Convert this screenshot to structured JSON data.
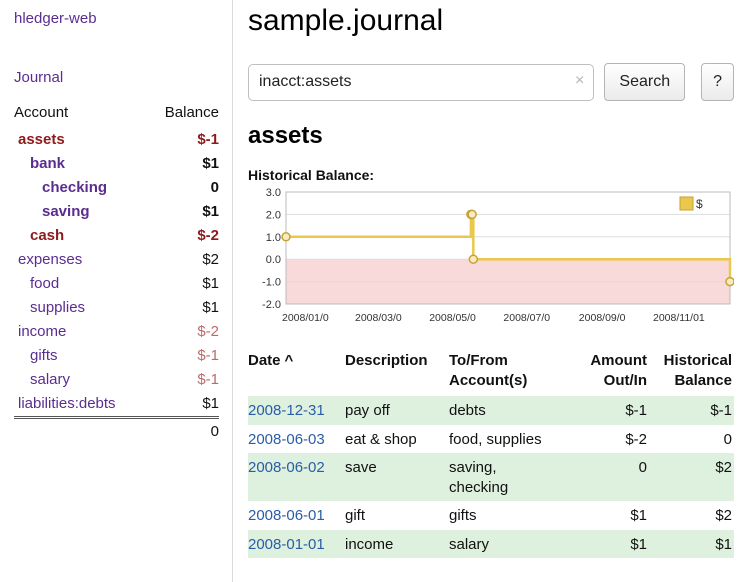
{
  "colors": {
    "link_purple": "#5b2d90",
    "negative_dark": "#8f1a1a",
    "negative_soft": "#bb6a6a",
    "amount_red": "#a32424",
    "date_link_blue": "#2a5da8",
    "row_shade_green": "#def0de",
    "chart_line_gold": "#e9c84b",
    "chart_negative_region": "#f9dada"
  },
  "sidebar": {
    "brand": "hledger-web",
    "journal_link": "Journal",
    "header": {
      "account": "Account",
      "balance": "Balance"
    },
    "accounts": [
      {
        "name": "assets",
        "balance": "$-1"
      },
      {
        "name": "bank",
        "balance": "$1"
      },
      {
        "name": "checking",
        "balance": "0"
      },
      {
        "name": "saving",
        "balance": "$1"
      },
      {
        "name": "cash",
        "balance": "$-2"
      },
      {
        "name": "expenses",
        "balance": "$2"
      },
      {
        "name": "food",
        "balance": "$1"
      },
      {
        "name": "supplies",
        "balance": "$1"
      },
      {
        "name": "income",
        "balance": "$-2"
      },
      {
        "name": "gifts",
        "balance": "$-1"
      },
      {
        "name": "salary",
        "balance": "$-1"
      },
      {
        "name": "liabilities:debts",
        "balance": "$1"
      }
    ],
    "total": "0"
  },
  "header": {
    "title": "sample.journal"
  },
  "search": {
    "value": "inacct:assets",
    "clear_icon": "×",
    "button": "Search",
    "help_button": "?"
  },
  "account_page": {
    "title": "assets",
    "chart_label": "Historical Balance:"
  },
  "chart_data": {
    "type": "line",
    "step": true,
    "title": "Historical Balance:",
    "legend": "$",
    "ylim": [
      -2,
      3
    ],
    "yticks": [
      3,
      2,
      1,
      0,
      -1,
      -2
    ],
    "x_range": [
      "2008-01-01",
      "2008-12-31"
    ],
    "xticks": [
      "2008-01-01",
      "2008-03-01",
      "2008-05-01",
      "2008-07-01",
      "2008-09-01",
      "2008-11-01"
    ],
    "xticklabels": [
      "2008/01/0",
      "2008/03/0",
      "2008/05/0",
      "2008/07/0",
      "2008/09/0",
      "2008/11/01"
    ],
    "grid": true,
    "legend_position": "top-right",
    "negative_region_color": "#f9dada",
    "series": [
      {
        "name": "$",
        "color": "#e9c84b",
        "marker_stroke": "#c7a233",
        "points": [
          {
            "date": "2008-01-01",
            "value": 1
          },
          {
            "date": "2008-06-01",
            "value": 2
          },
          {
            "date": "2008-06-02",
            "value": 2
          },
          {
            "date": "2008-06-03",
            "value": 0
          },
          {
            "date": "2008-12-31",
            "value": -1
          }
        ]
      }
    ]
  },
  "register": {
    "columns": [
      {
        "line1": "Date",
        "line2": "",
        "sort": "^"
      },
      {
        "line1": "Description",
        "line2": ""
      },
      {
        "line1": "To/From",
        "line2": "Account(s)"
      },
      {
        "line1": "Amount",
        "line2": "Out/In"
      },
      {
        "line1": "Historical",
        "line2": "Balance"
      }
    ],
    "rows": [
      {
        "date": "2008-12-31",
        "description": "pay off",
        "accounts": "debts",
        "amount": "$-1",
        "balance": "$-1"
      },
      {
        "date": "2008-06-03",
        "description": "eat & shop",
        "accounts": "food, supplies",
        "amount": "$-2",
        "balance": "0"
      },
      {
        "date": "2008-06-02",
        "description": "save",
        "accounts": "saving,\nchecking",
        "amount": "0",
        "balance": "$2"
      },
      {
        "date": "2008-06-01",
        "description": "gift",
        "accounts": "gifts",
        "amount": "$1",
        "balance": "$2"
      },
      {
        "date": "2008-01-01",
        "description": "income",
        "accounts": "salary",
        "amount": "$1",
        "balance": "$1"
      }
    ]
  }
}
